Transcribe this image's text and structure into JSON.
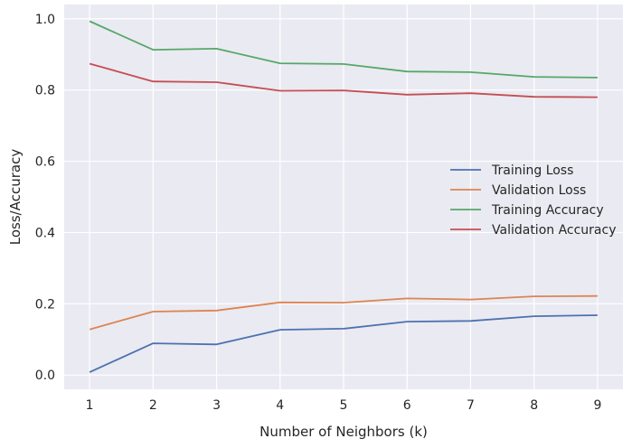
{
  "chart_data": {
    "type": "line",
    "xlabel": "Number of Neighbors (k)",
    "ylabel": "Loss/Accuracy",
    "x": [
      1,
      2,
      3,
      4,
      5,
      6,
      7,
      8,
      9
    ],
    "xlim": [
      0.6,
      9.4
    ],
    "ylim": [
      -0.04,
      1.04
    ],
    "xticks": [
      "1",
      "2",
      "3",
      "4",
      "5",
      "6",
      "7",
      "8",
      "9"
    ],
    "yticks": [
      "0.0",
      "0.2",
      "0.4",
      "0.6",
      "0.8",
      "1.0"
    ],
    "grid": true,
    "legend_position": "center-right",
    "series": [
      {
        "name": "Training Loss",
        "color": "#4c72b0",
        "values": [
          0.008,
          0.089,
          0.086,
          0.127,
          0.13,
          0.15,
          0.152,
          0.165,
          0.168
        ]
      },
      {
        "name": "Validation Loss",
        "color": "#dd8452",
        "values": [
          0.128,
          0.178,
          0.181,
          0.204,
          0.203,
          0.215,
          0.212,
          0.221,
          0.222
        ]
      },
      {
        "name": "Training Accuracy",
        "color": "#55a868",
        "values": [
          0.993,
          0.913,
          0.916,
          0.875,
          0.873,
          0.852,
          0.85,
          0.837,
          0.835
        ]
      },
      {
        "name": "Validation Accuracy",
        "color": "#c44e52",
        "values": [
          0.874,
          0.824,
          0.822,
          0.798,
          0.799,
          0.787,
          0.791,
          0.781,
          0.78
        ]
      }
    ]
  }
}
